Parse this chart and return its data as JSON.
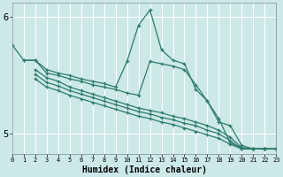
{
  "title": "",
  "xlabel": "Humidex (Indice chaleur)",
  "ylabel": "",
  "background_color": "#cce8e8",
  "line_color": "#2e7b6e",
  "grid_color": "#ffffff",
  "xlim": [
    0,
    23
  ],
  "ylim": [
    4.83,
    6.12
  ],
  "yticks": [
    5,
    6
  ],
  "xticks": [
    0,
    1,
    2,
    3,
    4,
    5,
    6,
    7,
    8,
    9,
    10,
    11,
    12,
    13,
    14,
    15,
    16,
    17,
    18,
    19,
    20,
    21,
    22,
    23
  ],
  "lines": [
    {
      "x": [
        0,
        1,
        2,
        3,
        4,
        5,
        6,
        7,
        8,
        9,
        10,
        11,
        12,
        13,
        14,
        15,
        16,
        17,
        18,
        19,
        20,
        21,
        22,
        23
      ],
      "y": [
        5.76,
        5.63,
        5.63,
        5.55,
        5.52,
        5.5,
        5.47,
        5.45,
        5.43,
        5.4,
        5.62,
        5.93,
        6.06,
        5.72,
        5.63,
        5.6,
        5.38,
        5.28,
        5.1,
        5.07,
        4.9,
        4.87,
        4.87,
        4.87
      ]
    },
    {
      "x": [
        1,
        2,
        3,
        4,
        5,
        6,
        7,
        8,
        9,
        10,
        11,
        12,
        13,
        14,
        15,
        16,
        17,
        18,
        19,
        20,
        21,
        22,
        23
      ],
      "y": [
        5.63,
        5.63,
        5.52,
        5.5,
        5.47,
        5.45,
        5.42,
        5.4,
        5.38,
        5.35,
        5.33,
        5.62,
        5.6,
        5.58,
        5.55,
        5.42,
        5.28,
        5.13,
        4.92,
        4.88,
        4.87,
        4.87,
        4.87
      ]
    },
    {
      "x": [
        2,
        3,
        4,
        5,
        6,
        7,
        8,
        9,
        10,
        11,
        12,
        13,
        14,
        15,
        16,
        17,
        18,
        19,
        20,
        21,
        22,
        23
      ],
      "y": [
        5.55,
        5.48,
        5.45,
        5.4,
        5.37,
        5.34,
        5.31,
        5.28,
        5.25,
        5.22,
        5.2,
        5.18,
        5.15,
        5.13,
        5.1,
        5.07,
        5.03,
        4.97,
        4.88,
        4.87,
        4.87,
        4.87
      ]
    },
    {
      "x": [
        2,
        3,
        4,
        5,
        6,
        7,
        8,
        9,
        10,
        11,
        12,
        13,
        14,
        15,
        16,
        17,
        18,
        19,
        20,
        21,
        22,
        23
      ],
      "y": [
        5.51,
        5.44,
        5.41,
        5.37,
        5.34,
        5.31,
        5.28,
        5.25,
        5.22,
        5.19,
        5.17,
        5.14,
        5.12,
        5.09,
        5.07,
        5.03,
        5.0,
        4.94,
        4.87,
        4.87,
        4.87,
        4.87
      ]
    },
    {
      "x": [
        2,
        3,
        4,
        5,
        6,
        7,
        8,
        9,
        10,
        11,
        12,
        13,
        14,
        15,
        16,
        17,
        18,
        19,
        20,
        21,
        22,
        23
      ],
      "y": [
        5.47,
        5.4,
        5.37,
        5.33,
        5.3,
        5.27,
        5.24,
        5.21,
        5.18,
        5.15,
        5.13,
        5.1,
        5.08,
        5.05,
        5.02,
        4.99,
        4.96,
        4.91,
        4.87,
        4.87,
        4.87,
        4.87
      ]
    }
  ]
}
